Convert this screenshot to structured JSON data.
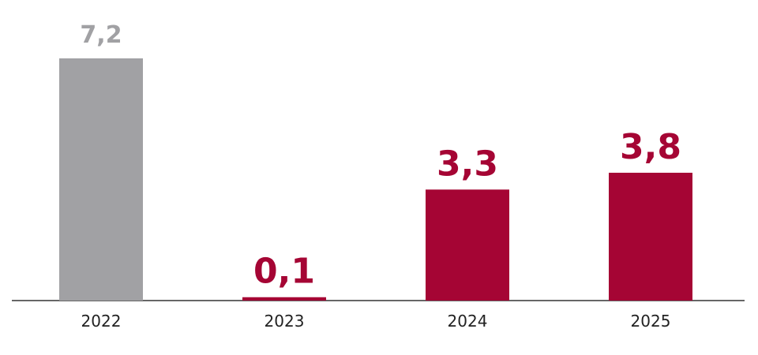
{
  "chart_data": {
    "type": "bar",
    "categories": [
      "2022",
      "2023",
      "2024",
      "2025"
    ],
    "values": [
      7.2,
      0.1,
      3.3,
      3.8
    ],
    "value_labels": [
      "7,2",
      "0,1",
      "3,3",
      "3,8"
    ],
    "colors": [
      "#a1a1a4",
      "#a50534",
      "#a50534",
      "#a50534"
    ]
  }
}
